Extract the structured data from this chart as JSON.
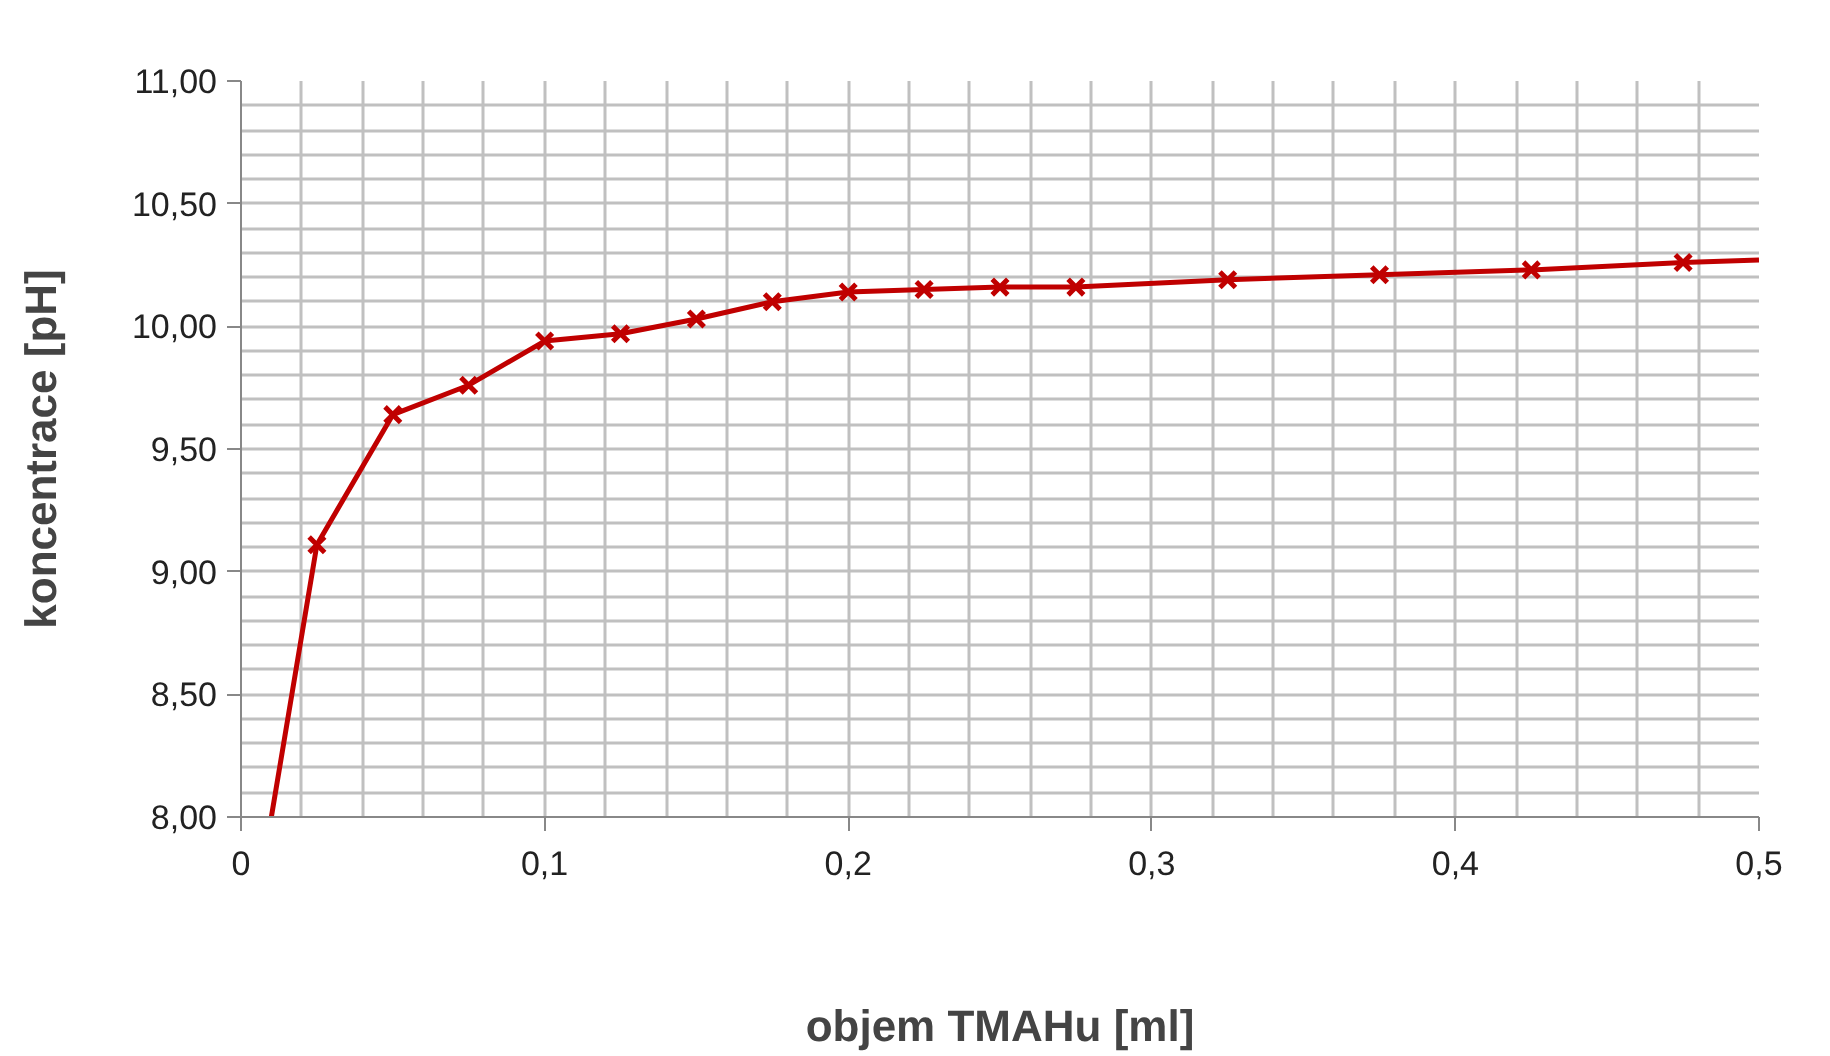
{
  "chart_data": {
    "type": "line",
    "xlabel": "objem TMAHu [ml]",
    "ylabel": "koncentrace [pH]",
    "series": [
      {
        "color": "#c00000",
        "marker": "none",
        "x": [
          0.01,
          0.025,
          0.05,
          0.075,
          0.1,
          0.125,
          0.15,
          0.175,
          0.2,
          0.225,
          0.25,
          0.275,
          0.325,
          0.375,
          0.425,
          0.475,
          0.5
        ],
        "values": [
          8.0,
          9.11,
          9.64,
          9.76,
          9.94,
          9.97,
          10.03,
          10.1,
          10.14,
          10.15,
          10.16,
          10.16,
          10.19,
          10.21,
          10.23,
          10.26,
          10.27
        ]
      },
      {
        "type": "scatter",
        "color": "#c00000",
        "marker": "cross",
        "x": [
          0.025,
          0.05,
          0.075,
          0.1,
          0.125,
          0.15,
          0.175,
          0.2,
          0.225,
          0.25,
          0.275,
          0.325,
          0.375,
          0.425,
          0.475
        ],
        "values": [
          9.11,
          9.64,
          9.76,
          9.94,
          9.97,
          10.03,
          10.1,
          10.14,
          10.15,
          10.16,
          10.16,
          10.19,
          10.21,
          10.23,
          10.26
        ]
      }
    ],
    "xlim": [
      0,
      0.5
    ],
    "xticks": [
      {
        "value": 0,
        "label": "0"
      },
      {
        "value": 0.02,
        "label": null
      },
      {
        "value": 0.04,
        "label": null
      },
      {
        "value": 0.06,
        "label": null
      },
      {
        "value": 0.08,
        "label": null
      },
      {
        "value": 0.1,
        "label": "0,1"
      },
      {
        "value": 0.12,
        "label": null
      },
      {
        "value": 0.14,
        "label": null
      },
      {
        "value": 0.16,
        "label": null
      },
      {
        "value": 0.18,
        "label": null
      },
      {
        "value": 0.2,
        "label": "0,2"
      },
      {
        "value": 0.22,
        "label": null
      },
      {
        "value": 0.24,
        "label": null
      },
      {
        "value": 0.26,
        "label": null
      },
      {
        "value": 0.28,
        "label": null
      },
      {
        "value": 0.3,
        "label": "0,3"
      },
      {
        "value": 0.32,
        "label": null
      },
      {
        "value": 0.34,
        "label": null
      },
      {
        "value": 0.36,
        "label": null
      },
      {
        "value": 0.38,
        "label": null
      },
      {
        "value": 0.4,
        "label": "0,4"
      },
      {
        "value": 0.42,
        "label": null
      },
      {
        "value": 0.44,
        "label": null
      },
      {
        "value": 0.46,
        "label": null
      },
      {
        "value": 0.48,
        "label": null
      },
      {
        "value": 0.5,
        "label": "0,5"
      }
    ],
    "ylim": [
      8,
      11
    ],
    "yticks": [
      {
        "value": 8,
        "label": "8,00"
      },
      {
        "value": 8.1,
        "label": null
      },
      {
        "value": 8.2,
        "label": null
      },
      {
        "value": 8.3,
        "label": null
      },
      {
        "value": 8.4,
        "label": null
      },
      {
        "value": 8.5,
        "label": "8,50"
      },
      {
        "value": 8.6,
        "label": null
      },
      {
        "value": 8.7,
        "label": null
      },
      {
        "value": 8.8,
        "label": null
      },
      {
        "value": 8.9,
        "label": null
      },
      {
        "value": 9,
        "label": "9,00"
      },
      {
        "value": 9.1,
        "label": null
      },
      {
        "value": 9.2,
        "label": null
      },
      {
        "value": 9.3,
        "label": null
      },
      {
        "value": 9.4,
        "label": null
      },
      {
        "value": 9.5,
        "label": "9,50"
      },
      {
        "value": 9.6,
        "label": null
      },
      {
        "value": 9.7,
        "label": null
      },
      {
        "value": 9.8,
        "label": null
      },
      {
        "value": 9.9,
        "label": null
      },
      {
        "value": 10,
        "label": "10,00"
      },
      {
        "value": 10.1,
        "label": null
      },
      {
        "value": 10.2,
        "label": null
      },
      {
        "value": 10.3,
        "label": null
      },
      {
        "value": 10.4,
        "label": null
      },
      {
        "value": 10.5,
        "label": "10,50"
      },
      {
        "value": 10.6,
        "label": null
      },
      {
        "value": 10.7,
        "label": null
      },
      {
        "value": 10.8,
        "label": null
      },
      {
        "value": 10.9,
        "label": null
      },
      {
        "value": 11,
        "label": "11,00"
      }
    ],
    "grid": true
  }
}
